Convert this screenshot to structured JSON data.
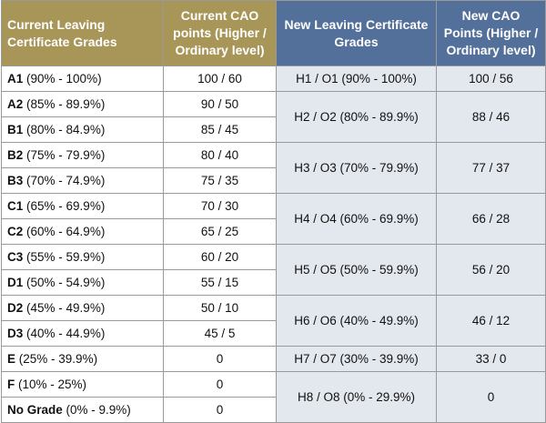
{
  "header": [
    "Current Leaving Certificate Grades",
    "Current CAO points  (Higher / Ordinary level)",
    "New Leaving Certificate Grades",
    "New CAO Points (Higher / Ordinary level)"
  ],
  "current": [
    {
      "grade": "A1",
      "range": "(90% - 100%)",
      "points": "100 / 60"
    },
    {
      "grade": "A2",
      "range": "(85% - 89.9%)",
      "points": "90 / 50"
    },
    {
      "grade": "B1",
      "range": "(80% - 84.9%)",
      "points": "85 / 45"
    },
    {
      "grade": "B2",
      "range": "(75% - 79.9%)",
      "points": "80 / 40"
    },
    {
      "grade": "B3",
      "range": "(70% - 74.9%)",
      "points": "75 / 35"
    },
    {
      "grade": "C1",
      "range": "(65% - 69.9%)",
      "points": "70 / 30"
    },
    {
      "grade": "C2",
      "range": "(60% - 64.9%)",
      "points": "65 / 25"
    },
    {
      "grade": "C3",
      "range": "(55% - 59.9%)",
      "points": "60 / 20"
    },
    {
      "grade": "D1",
      "range": "(50% - 54.9%)",
      "points": "55 / 15"
    },
    {
      "grade": "D2",
      "range": "(45% - 49.9%)",
      "points": "50 / 10"
    },
    {
      "grade": "D3",
      "range": "(40% - 44.9%)",
      "points": "45 / 5"
    },
    {
      "grade": "E",
      "range": "(25% - 39.9%)",
      "points": "0"
    },
    {
      "grade": "F",
      "range": "(10% - 25%)",
      "points": "0"
    },
    {
      "grade": "No Grade",
      "range": "(0% - 9.9%)",
      "points": "0"
    }
  ],
  "new": [
    {
      "grade": "H1 / O1 (90% - 100%)",
      "points": "100 / 56"
    },
    {
      "grade": "H2 / O2 (80% - 89.9%)",
      "points": "88 / 46"
    },
    {
      "grade": "H3 / O3 (70% - 79.9%)",
      "points": "77 / 37"
    },
    {
      "grade": "H4 / O4 (60% - 69.9%)",
      "points": "66 / 28"
    },
    {
      "grade": "H5 / O5 (50% - 59.9%)",
      "points": "56 / 20"
    },
    {
      "grade": "H6 / O6 (40% - 49.9%)",
      "points": "46 / 12"
    },
    {
      "grade": "H7 / O7 (30% - 39.9%)",
      "points": "33 / 0"
    },
    {
      "grade": "H8 / O8 (0% - 29.9%)",
      "points": "0"
    }
  ]
}
